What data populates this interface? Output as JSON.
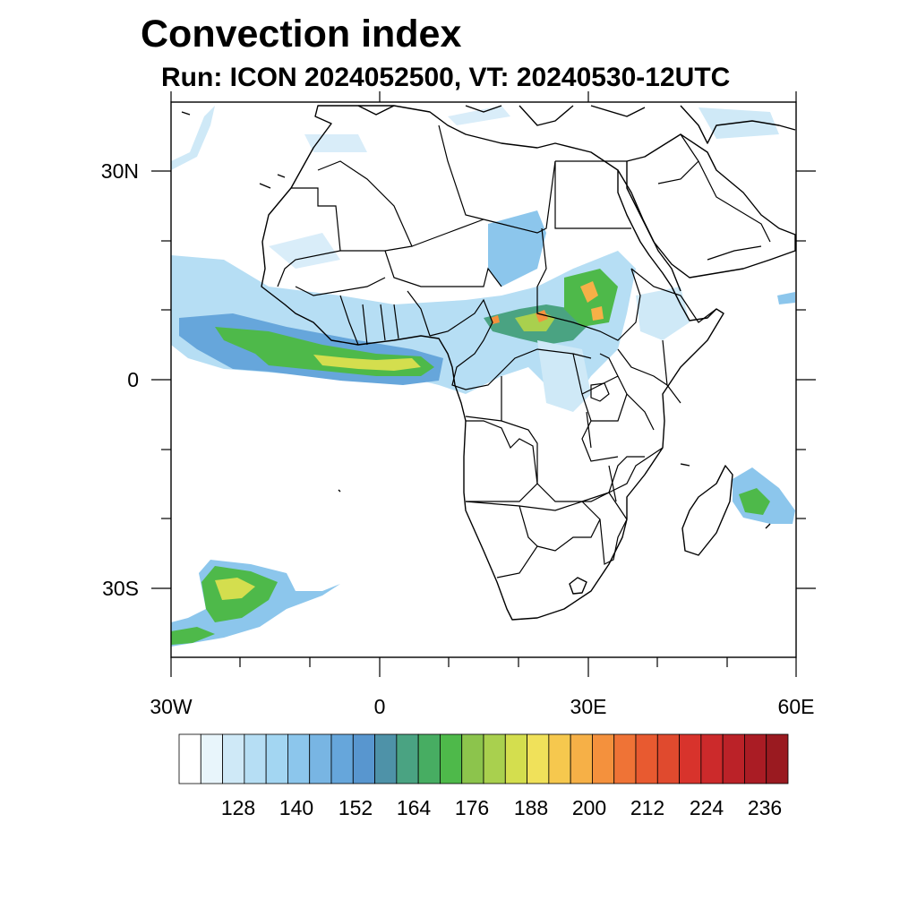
{
  "title": "Convection index",
  "subtitle": "Run: ICON 2024052500,  VT: 20240530-12UTC",
  "map": {
    "region": "Africa",
    "lon_range": [
      -30,
      60
    ],
    "lat_range": [
      -40,
      40
    ],
    "x_ticks": [
      {
        "label": "30W",
        "lon": -30
      },
      {
        "label": "0",
        "lon": 0
      },
      {
        "label": "30E",
        "lon": 30
      },
      {
        "label": "60E",
        "lon": 60
      }
    ],
    "y_ticks": [
      {
        "label": "30N",
        "lat": 30
      },
      {
        "label": "0",
        "lat": 0
      },
      {
        "label": "30S",
        "lat": -30
      }
    ]
  },
  "colorbar": {
    "labels": [
      "128",
      "140",
      "152",
      "164",
      "176",
      "188",
      "200",
      "212",
      "224",
      "236"
    ],
    "colors": [
      "#ffffff",
      "#e8f5fb",
      "#cfe9f7",
      "#b6def4",
      "#a3d6f2",
      "#8cc6ec",
      "#78b5e3",
      "#66a6db",
      "#5896cf",
      "#4e92a8",
      "#4aa382",
      "#47ad62",
      "#4eb94a",
      "#8cc44c",
      "#a9d04e",
      "#d4de4e",
      "#f0e15a",
      "#f6c84e",
      "#f6b047",
      "#f4913d",
      "#ef7336",
      "#e85a30",
      "#e04a2e",
      "#d8332c",
      "#cc2a2b",
      "#bb2228",
      "#aa1c24",
      "#9a1a20"
    ]
  }
}
